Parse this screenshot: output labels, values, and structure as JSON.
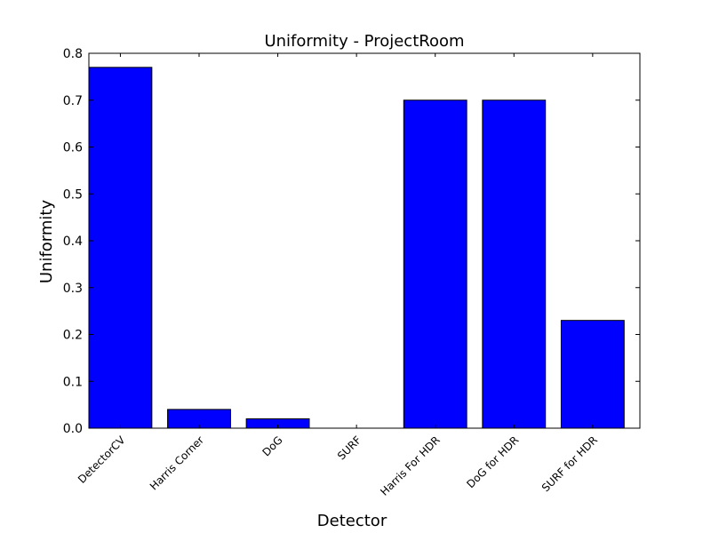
{
  "chart_data": {
    "type": "bar",
    "title": "Uniformity - ProjectRoom",
    "xlabel": "Detector",
    "ylabel": "Uniformity",
    "categories": [
      "DetectorCV",
      "Harris Corner",
      "DoG",
      "SURF",
      "Harris For HDR",
      "DoG for HDR",
      "SURF for HDR"
    ],
    "values": [
      0.77,
      0.04,
      0.02,
      0.0,
      0.7,
      0.7,
      0.23
    ],
    "ylim": [
      0,
      0.8
    ],
    "yticks": [
      "0.0",
      "0.1",
      "0.2",
      "0.3",
      "0.4",
      "0.5",
      "0.6",
      "0.7",
      "0.8"
    ],
    "bar_color": "#0000ff",
    "grid": false
  }
}
